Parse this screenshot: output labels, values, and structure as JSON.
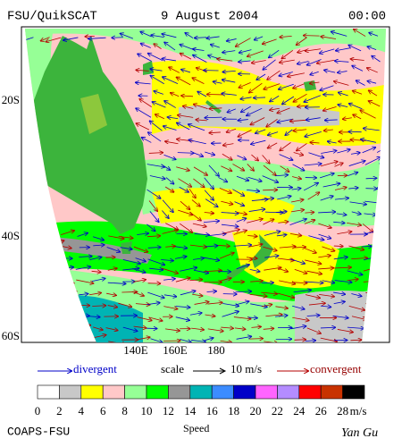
{
  "header": {
    "source": "FSU/QuikSCAT",
    "date": "9 August 2004",
    "time": "00:00"
  },
  "map": {
    "lat_labels": [
      "20S",
      "40S",
      "60S"
    ],
    "lon_labels": [
      "140E",
      "160E",
      "180"
    ]
  },
  "legend": {
    "divergent": "divergent",
    "scale": "scale",
    "scale_value": "10 m/s",
    "convergent": "convergent"
  },
  "colorbar": {
    "ticks": [
      0,
      2,
      4,
      6,
      8,
      10,
      12,
      14,
      16,
      18,
      20,
      22,
      24,
      26,
      28
    ],
    "unit": "m/s",
    "title": "Speed",
    "colors": [
      "#ffffff",
      "#c8c8c8",
      "#ffff00",
      "#ffc8c8",
      "#96ff96",
      "#00ff00",
      "#969696",
      "#00b4b4",
      "#3c8cff",
      "#0000c8",
      "#ff64ff",
      "#b48cff",
      "#ff0000",
      "#c83200",
      "#000000"
    ]
  },
  "footer": {
    "credit": "COAPS-FSU",
    "author": "Yan Gu"
  }
}
